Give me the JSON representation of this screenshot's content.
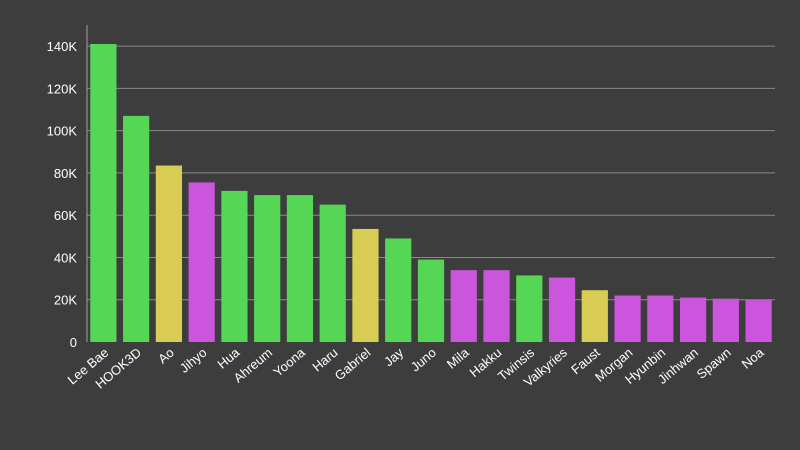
{
  "chart_data": {
    "type": "bar",
    "title": "",
    "xlabel": "",
    "ylabel": "",
    "ylim": [
      0,
      150000
    ],
    "yticks": [
      0,
      20000,
      40000,
      60000,
      80000,
      100000,
      120000,
      140000
    ],
    "ytick_labels": [
      "0",
      "20K",
      "40K",
      "60K",
      "80K",
      "100K",
      "120K",
      "140K"
    ],
    "grid": true,
    "legend": "none",
    "categories": [
      "Lee Bae",
      "HOOK3D",
      "Ao",
      "Jihyo",
      "Hua",
      "Ahreum",
      "Yoona",
      "Haru",
      "Gabriel",
      "Jay",
      "Juno",
      "Mila",
      "Hakku",
      "Twinsis",
      "Valkyries",
      "Faust",
      "Morgan",
      "Hyunbin",
      "Jinhwan",
      "Spawn",
      "Noa"
    ],
    "values": [
      141000,
      107000,
      83500,
      75500,
      71500,
      69500,
      69500,
      65000,
      53500,
      49000,
      39000,
      34000,
      34000,
      31500,
      30500,
      24500,
      22000,
      22000,
      21000,
      20500,
      20000
    ],
    "colors": [
      "#55d655",
      "#55d655",
      "#d8cc55",
      "#cc55dd",
      "#55d655",
      "#55d655",
      "#55d655",
      "#55d655",
      "#d8cc55",
      "#55d655",
      "#55d655",
      "#cc55dd",
      "#cc55dd",
      "#55d655",
      "#cc55dd",
      "#d8cc55",
      "#cc55dd",
      "#cc55dd",
      "#cc55dd",
      "#cc55dd",
      "#cc55dd"
    ]
  }
}
